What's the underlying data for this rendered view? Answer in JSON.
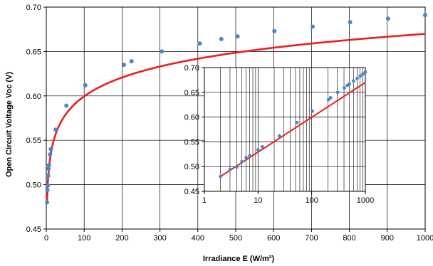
{
  "chart_data": [
    {
      "type": "scatter",
      "panel": "main",
      "title": "",
      "xlabel": "Irradiance E (W/m²)",
      "ylabel": "Open Circuit Voltage Voc (V)",
      "xlim": [
        0,
        1000
      ],
      "ylim": [
        0.45,
        0.7
      ],
      "x_ticks": [
        0,
        100,
        200,
        300,
        400,
        500,
        600,
        700,
        800,
        900,
        1000
      ],
      "y_ticks": [
        0.45,
        0.5,
        0.55,
        0.6,
        0.65,
        0.7
      ],
      "x_tick_labels": [
        "0",
        "100",
        "200",
        "300",
        "400",
        "500",
        "600",
        "700",
        "800",
        "900",
        "1000"
      ],
      "y_tick_labels": [
        "0.45",
        "0.50",
        "0.55",
        "0.60",
        "0.65",
        "0.70"
      ],
      "grid": true,
      "legend": "none",
      "series": [
        {
          "kind": "markers",
          "color": "#4a86c8",
          "points": [
            [
              2,
              0.48
            ],
            [
              3,
              0.494
            ],
            [
              4,
              0.499
            ],
            [
              5,
              0.51
            ],
            [
              6,
              0.518
            ],
            [
              7,
              0.522
            ],
            [
              10,
              0.534
            ],
            [
              12,
              0.54
            ],
            [
              25,
              0.562
            ],
            [
              53,
              0.589
            ],
            [
              103,
              0.612
            ],
            [
              205,
              0.635
            ],
            [
              225,
              0.639
            ],
            [
              305,
              0.65
            ],
            [
              405,
              0.659
            ],
            [
              462,
              0.664
            ],
            [
              505,
              0.667
            ],
            [
              602,
              0.673
            ],
            [
              703,
              0.678
            ],
            [
              802,
              0.683
            ],
            [
              902,
              0.687
            ],
            [
              1000,
              0.691
            ]
          ]
        },
        {
          "kind": "fit-line",
          "color": "#e8211d",
          "model": "log",
          "slope_per_decade": 0.0703,
          "intercept": 0.4801,
          "x_range": [
            2,
            1000
          ]
        }
      ]
    },
    {
      "type": "scatter",
      "panel": "inset",
      "title": "",
      "xscale": "log",
      "xlim": [
        1,
        1000
      ],
      "ylim": [
        0.45,
        0.7
      ],
      "x_ticks": [
        1,
        10,
        100,
        1000
      ],
      "y_ticks": [
        0.45,
        0.5,
        0.55,
        0.6,
        0.65,
        0.7
      ],
      "x_tick_labels": [
        "1",
        "10",
        "100",
        "1000"
      ],
      "y_tick_labels": [
        "0.45",
        "0.50",
        "0.55",
        "0.60",
        "0.65",
        "0.70"
      ],
      "grid": true,
      "legend": "none",
      "series": [
        {
          "kind": "markers",
          "color": "#4a86c8",
          "points": [
            [
              2,
              0.48
            ],
            [
              3,
              0.494
            ],
            [
              4,
              0.499
            ],
            [
              5,
              0.51
            ],
            [
              6,
              0.518
            ],
            [
              7,
              0.522
            ],
            [
              10,
              0.534
            ],
            [
              12,
              0.54
            ],
            [
              25,
              0.562
            ],
            [
              53,
              0.589
            ],
            [
              103,
              0.612
            ],
            [
              205,
              0.635
            ],
            [
              225,
              0.639
            ],
            [
              305,
              0.65
            ],
            [
              405,
              0.659
            ],
            [
              462,
              0.664
            ],
            [
              505,
              0.667
            ],
            [
              602,
              0.673
            ],
            [
              703,
              0.678
            ],
            [
              802,
              0.683
            ],
            [
              902,
              0.687
            ],
            [
              1000,
              0.691
            ]
          ]
        },
        {
          "kind": "fit-line",
          "color": "#e8211d",
          "model": "log",
          "slope_per_decade": 0.0703,
          "intercept": 0.4801,
          "x_range": [
            2,
            1000
          ]
        }
      ]
    }
  ]
}
